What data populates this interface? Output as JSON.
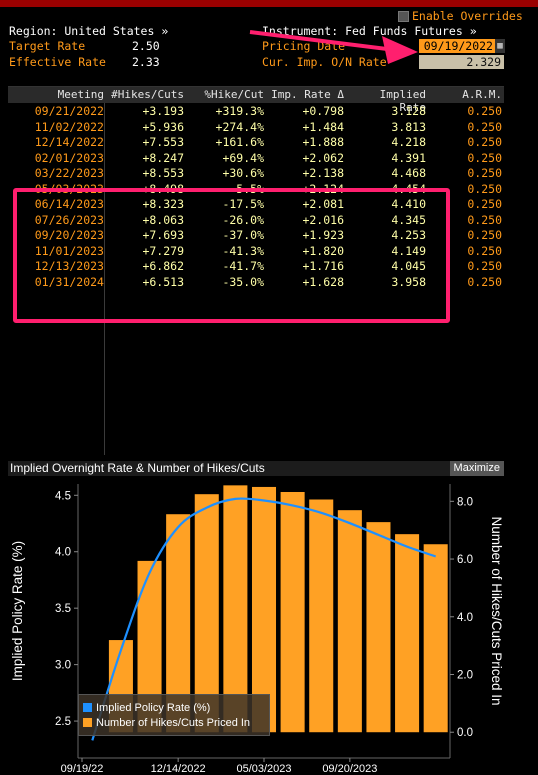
{
  "header": {
    "region": "Region: United States »",
    "instrument": "Instrument: Fed Funds Futures »",
    "enable_overrides": "Enable Overrides",
    "target_rate_label": "Target Rate",
    "target_rate_value": "2.50",
    "effective_rate_label": "Effective Rate",
    "effective_rate_value": "2.33",
    "pricing_date_label": "Pricing Date",
    "pricing_date_value": "09/19/2022",
    "cur_imp_label": "Cur. Imp. O/N Rate",
    "cur_imp_value": "2.329"
  },
  "table": {
    "columns": [
      "Meeting",
      "#Hikes/Cuts",
      "%Hike/Cut",
      "Imp. Rate Δ",
      "Implied Rate",
      "A.R.M."
    ],
    "rows": [
      [
        "09/21/2022",
        "+3.193",
        "+319.3%",
        "+0.798",
        "3.128",
        "0.250"
      ],
      [
        "11/02/2022",
        "+5.936",
        "+274.4%",
        "+1.484",
        "3.813",
        "0.250"
      ],
      [
        "12/14/2022",
        "+7.553",
        "+161.6%",
        "+1.888",
        "4.218",
        "0.250"
      ],
      [
        "02/01/2023",
        "+8.247",
        "+69.4%",
        "+2.062",
        "4.391",
        "0.250"
      ],
      [
        "03/22/2023",
        "+8.553",
        "+30.6%",
        "+2.138",
        "4.468",
        "0.250"
      ],
      [
        "05/03/2023",
        "+8.498",
        "-5.5%",
        "+2.124",
        "4.454",
        "0.250"
      ],
      [
        "06/14/2023",
        "+8.323",
        "-17.5%",
        "+2.081",
        "4.410",
        "0.250"
      ],
      [
        "07/26/2023",
        "+8.063",
        "-26.0%",
        "+2.016",
        "4.345",
        "0.250"
      ],
      [
        "09/20/2023",
        "+7.693",
        "-37.0%",
        "+1.923",
        "4.253",
        "0.250"
      ],
      [
        "11/01/2023",
        "+7.279",
        "-41.3%",
        "+1.820",
        "4.149",
        "0.250"
      ],
      [
        "12/13/2023",
        "+6.862",
        "-41.7%",
        "+1.716",
        "4.045",
        "0.250"
      ],
      [
        "01/31/2024",
        "+6.513",
        "-35.0%",
        "+1.628",
        "3.958",
        "0.250"
      ]
    ]
  },
  "chart_header": {
    "title": "Implied Overnight Rate & Number of Hikes/Cuts",
    "maximize": "Maximize"
  },
  "colors": {
    "bar": "#ffa124",
    "line": "#1e90ff",
    "highlight": "#ff1f6e",
    "arrow": "#ff1f6e"
  },
  "chart_data": {
    "type": "bar",
    "title": "",
    "ylabel": "Implied Policy Rate (%)",
    "y2label": "Number of Hikes/Cuts Priced In",
    "categories": [
      "09/19/2022",
      "09/21/2022",
      "11/02/2022",
      "12/14/2022",
      "02/01/2023",
      "03/22/2023",
      "05/03/2023",
      "06/14/2023",
      "07/26/2023",
      "09/20/2023",
      "11/01/2023",
      "12/13/2023",
      "01/31/2024"
    ],
    "x_tick_labels": [
      "09/19/22",
      "12/14/2022",
      "05/03/2023",
      "09/20/2023"
    ],
    "x_tick_indices": [
      0,
      3,
      6,
      9
    ],
    "ylim": [
      2.35,
      4.6
    ],
    "y_ticks": [
      "2.5",
      "3.0",
      "3.5",
      "4.0",
      "4.5"
    ],
    "y2lim": [
      -0.2,
      8.6
    ],
    "y2_ticks": [
      "0.0",
      "2.0",
      "4.0",
      "6.0",
      "8.0"
    ],
    "series": [
      {
        "name": "Implied Policy Rate (%)",
        "type": "line",
        "values": [
          2.329,
          3.128,
          3.813,
          4.218,
          4.391,
          4.468,
          4.454,
          4.41,
          4.345,
          4.253,
          4.149,
          4.045,
          3.958
        ]
      },
      {
        "name": "Number of Hikes/Cuts Priced In",
        "type": "bar",
        "axis": "right",
        "values": [
          0,
          3.193,
          5.936,
          7.553,
          8.247,
          8.553,
          8.498,
          8.323,
          8.063,
          7.693,
          7.279,
          6.862,
          6.513
        ]
      }
    ],
    "legend": "bottom-left",
    "grid": false
  }
}
